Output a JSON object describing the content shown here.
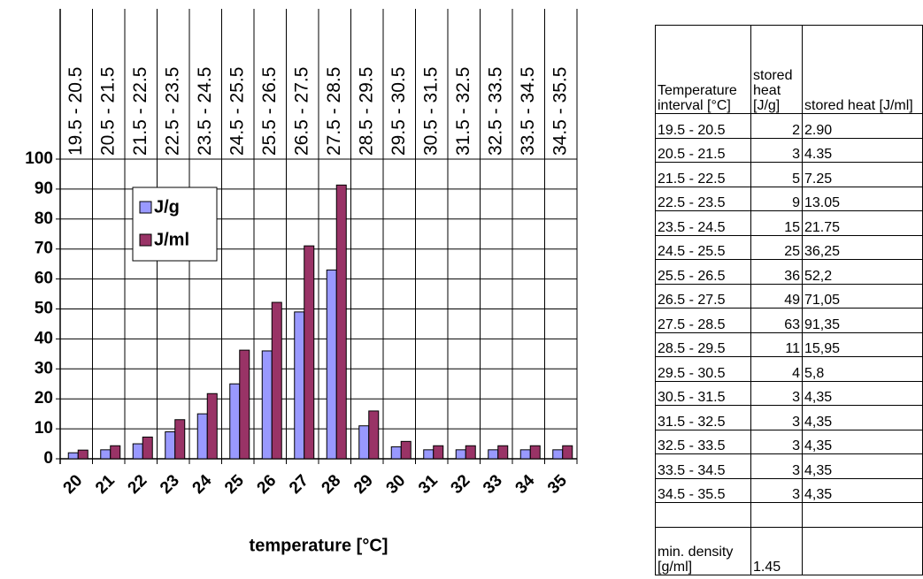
{
  "chart_data": {
    "type": "bar",
    "x_label": "temperature [°C]",
    "categories": [
      "20",
      "21",
      "22",
      "23",
      "24",
      "25",
      "26",
      "27",
      "28",
      "29",
      "30",
      "31",
      "32",
      "33",
      "34",
      "35"
    ],
    "top_labels": [
      "19.5 - 20.5",
      "20.5 - 21.5",
      "21.5 - 22.5",
      "22.5 - 23.5",
      "23.5 - 24.5",
      "24.5 - 25.5",
      "25.5 - 26.5",
      "26.5 - 27.5",
      "27.5 - 28.5",
      "28.5 - 29.5",
      "29.5 - 30.5",
      "30.5 - 31.5",
      "31.5 - 32.5",
      "32.5 - 33.5",
      "33.5 - 34.5",
      "34.5 - 35.5"
    ],
    "series": [
      {
        "name": "J/g",
        "color": "#9999ff",
        "values": [
          2,
          3,
          5,
          9,
          15,
          25,
          36,
          49,
          63,
          11,
          4,
          3,
          3,
          3,
          3,
          3
        ]
      },
      {
        "name": "J/ml",
        "color": "#993366",
        "values": [
          2.9,
          4.35,
          7.25,
          13.05,
          21.75,
          36.25,
          52.2,
          71.05,
          91.35,
          15.95,
          5.8,
          4.35,
          4.35,
          4.35,
          4.35,
          4.35
        ]
      }
    ],
    "ylim": [
      0,
      100
    ],
    "yticks": [
      0,
      10,
      20,
      30,
      40,
      50,
      60,
      70,
      80,
      90,
      100
    ],
    "grid": true,
    "legend": "upper left"
  },
  "table": {
    "header": [
      "Temperature interval [°C]",
      "stored heat [J/g]",
      "stored heat [J/ml]"
    ],
    "rows": [
      [
        "19.5 - 20.5",
        "2",
        "2.90"
      ],
      [
        "20.5 - 21.5",
        "3",
        "4.35"
      ],
      [
        "21.5 - 22.5",
        "5",
        "7.25"
      ],
      [
        "22.5 - 23.5",
        "9",
        "13.05"
      ],
      [
        "23.5 - 24.5",
        "15",
        "21.75"
      ],
      [
        "24.5 - 25.5",
        "25",
        "36,25"
      ],
      [
        "25.5 - 26.5",
        "36",
        "52,2"
      ],
      [
        "26.5 - 27.5",
        "49",
        "71,05"
      ],
      [
        "27.5 - 28.5",
        "63",
        "91,35"
      ],
      [
        "28.5 - 29.5",
        "11",
        "15,95"
      ],
      [
        "29.5 - 30.5",
        "4",
        "5,8"
      ],
      [
        "30.5 - 31.5",
        "3",
        "4,35"
      ],
      [
        "31.5 - 32.5",
        "3",
        "4,35"
      ],
      [
        "32.5 - 33.5",
        "3",
        "4,35"
      ],
      [
        "33.5 - 34.5",
        "3",
        "4,35"
      ],
      [
        "34.5 - 35.5",
        "3",
        "4,35"
      ]
    ],
    "footer": {
      "label": "min. density [g/ml]",
      "value": "1.45"
    }
  }
}
